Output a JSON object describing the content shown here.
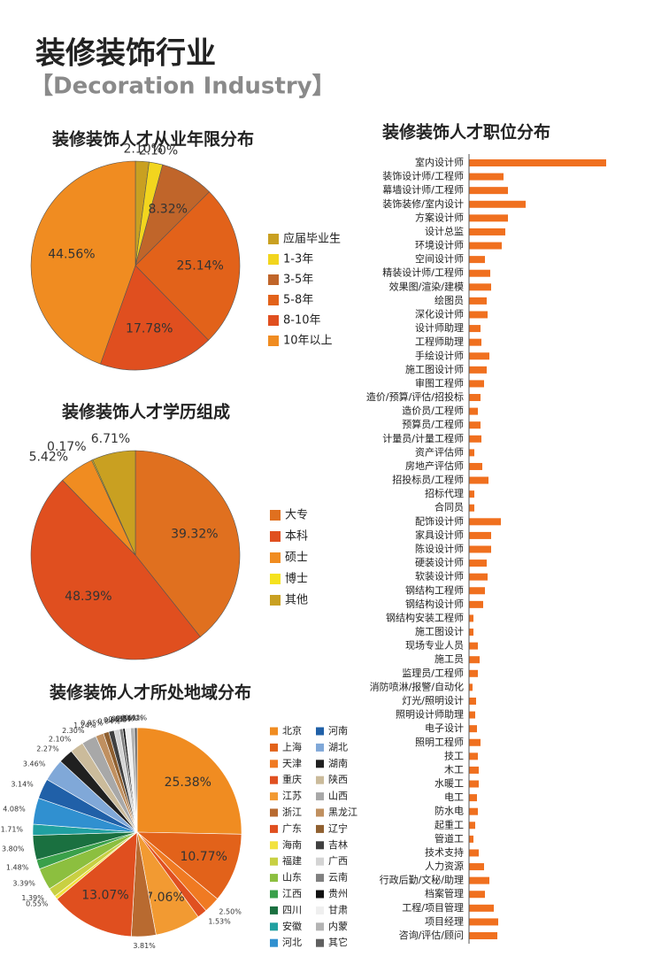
{
  "title": "装修装饰行业",
  "subtitle": "【Decoration Industry】",
  "chart_data": [
    {
      "type": "pie",
      "title": "装修装饰人才从业年限分布",
      "categories": [
        "应届毕业生",
        "1-3年",
        "3-5年",
        "5-8年",
        "8-10年",
        "10年以上"
      ],
      "values": [
        2.1,
        2.1,
        8.32,
        25.14,
        17.78,
        44.56
      ],
      "value_labels": [
        "2.10%",
        "2.10%",
        "8.32%",
        "25.14%",
        "17.78%",
        "44.56%"
      ],
      "colors": [
        "#c9a021",
        "#f2d51e",
        "#c0652a",
        "#e2621a",
        "#e04f1f",
        "#f08c21"
      ]
    },
    {
      "type": "pie",
      "title": "装修装饰人才学历组成",
      "categories": [
        "大专",
        "本科",
        "硕士",
        "博士",
        "其他"
      ],
      "values": [
        39.32,
        48.39,
        5.42,
        0.17,
        6.71
      ],
      "value_labels": [
        "39.32%",
        "48.39%",
        "5.42%",
        "0.17%",
        "6.71%"
      ],
      "colors": [
        "#e0701f",
        "#e04f1f",
        "#f08c21",
        "#f5e21e",
        "#c9a021"
      ]
    },
    {
      "type": "pie",
      "title": "装修装饰人才所处地域分布",
      "categories": [
        "北京",
        "上海",
        "天津",
        "重庆",
        "江苏",
        "浙江",
        "广东",
        "海南",
        "福建",
        "山东",
        "江西",
        "四川",
        "安徽",
        "河北",
        "河南",
        "湖北",
        "湖南",
        "陕西",
        "山西",
        "黑龙江",
        "辽宁",
        "吉林",
        "广西",
        "云南",
        "贵州",
        "甘肃",
        "内蒙",
        "其它"
      ],
      "values": [
        25.38,
        10.77,
        2.5,
        1.53,
        7.06,
        3.81,
        13.07,
        0.55,
        1.39,
        3.39,
        1.48,
        3.8,
        1.71,
        4.08,
        3.14,
        3.46,
        2.27,
        2.1,
        2.3,
        1.24,
        0.85,
        0.84,
        0.84,
        0.52,
        0.35,
        0.84,
        0.61,
        0.41
      ],
      "value_labels": [
        "25.38%",
        "10.77%",
        "2.50%",
        "1.53%",
        "7.06%",
        "3.81%",
        "13.07%",
        "0.55%",
        "1.39%",
        "3.39%",
        "1.48%",
        "3.80%",
        "1.71%",
        "4.08%",
        "3.14%",
        "3.46%",
        "2.27%",
        "2.10%",
        "2.30%",
        "1.24%",
        "0.85%",
        "0.84%",
        "0.84%",
        "0.52%",
        "0.35%",
        "0.84%",
        "0.61%",
        "0.41%"
      ],
      "colors": [
        "#f08c21",
        "#e2621a",
        "#f07a22",
        "#e05020",
        "#f29a32",
        "#b86a30",
        "#e04f1f",
        "#f2e23e",
        "#c8d042",
        "#8cbf3f",
        "#3aa04a",
        "#1a7040",
        "#20a0a0",
        "#3090d0",
        "#2060a8",
        "#80a8d8",
        "#202020",
        "#cbbb9b",
        "#a8a8a8",
        "#c09060",
        "#906030",
        "#404040",
        "#d4d4d4",
        "#808080",
        "#111111",
        "#efefef",
        "#b4b4b4",
        "#606060"
      ]
    },
    {
      "type": "bar",
      "orientation": "horizontal",
      "title": "装修装饰人才职位分布",
      "categories": [
        "室内设计师",
        "装饰设计师/工程师",
        "幕墙设计师/工程师",
        "装饰装修/室内设计",
        "方案设计师",
        "设计总监",
        "环境设计师",
        "空间设计师",
        "精装设计师/工程师",
        "效果图/渲染/建模",
        "绘图员",
        "深化设计师",
        "设计师助理",
        "工程师助理",
        "手绘设计师",
        "施工图设计师",
        "审图工程师",
        "造价/预算/评估/招投标",
        "造价员/工程师",
        "预算员/工程师",
        "计量员/计量工程师",
        "资产评估师",
        "房地产评估师",
        "招投标员/工程师",
        "招标代理",
        "合同员",
        "配饰设计师",
        "家具设计师",
        "陈设设计师",
        "硬装设计师",
        "软装设计师",
        "钢结构工程师",
        "钢结构设计师",
        "钢结构安装工程师",
        "施工图设计",
        "现场专业人员",
        "施工员",
        "监理员/工程师",
        "消防喷淋/报警/自动化",
        "灯光/照明设计",
        "照明设计师助理",
        "电子设计",
        "照明工程师",
        "技工",
        "木工",
        "水暖工",
        "电工",
        "防水电",
        "起重工",
        "管道工",
        "技术支持",
        "人力资源",
        "行政后勤/文秘/助理",
        "档案管理",
        "工程/项目管理",
        "项目经理",
        "咨询/评估/顾问"
      ],
      "values": [
        155,
        39,
        44,
        64,
        44,
        41,
        37,
        18,
        24,
        25,
        20,
        21,
        13,
        14,
        23,
        20,
        17,
        13,
        10,
        13,
        14,
        6,
        15,
        22,
        6,
        6,
        36,
        25,
        25,
        20,
        21,
        18,
        16,
        5,
        5,
        10,
        12,
        10,
        4,
        8,
        7,
        9,
        13,
        10,
        11,
        11,
        9,
        10,
        7,
        5,
        11,
        17,
        23,
        18,
        28,
        33,
        32
      ],
      "xlim": [
        0,
        160
      ],
      "color": "#f0701f"
    }
  ]
}
